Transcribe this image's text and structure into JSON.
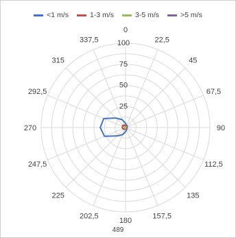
{
  "chart_data": {
    "type": "radar",
    "series": [
      {
        "name": "<1 m/s",
        "color": "#4472c4",
        "values": [
          5,
          3,
          3,
          2,
          2,
          2,
          2,
          3,
          5,
          9,
          14,
          27,
          30,
          28,
          16,
          10
        ]
      },
      {
        "name": "1-3 m/s",
        "color": "#c0504d",
        "values": [
          3,
          2,
          2,
          1,
          1,
          1,
          1,
          1,
          2,
          2,
          3,
          3,
          4,
          4,
          3,
          3
        ]
      },
      {
        "name": "3-5 m/s",
        "color": "#9bbb59",
        "values": [
          1,
          1,
          1,
          0,
          0,
          0,
          0,
          0,
          1,
          1,
          1,
          1,
          1,
          1,
          1,
          1
        ]
      },
      {
        "name": ">5 m/s",
        "color": "#8064a2",
        "values": [
          0,
          0,
          0,
          0,
          0,
          0,
          0,
          0,
          0,
          0,
          0,
          0,
          0,
          0,
          0,
          0
        ]
      }
    ],
    "directions": [
      "0",
      "22,5",
      "45",
      "67,5",
      "90",
      "112,5",
      "135",
      "157,5",
      "180",
      "202,5",
      "225",
      "247,5",
      "270",
      "292,5",
      "315",
      "337,5"
    ],
    "radial_ticks": [
      "0",
      "25",
      "50",
      "75",
      "100"
    ],
    "rmax": 100,
    "legend_position": "top",
    "footer": "489"
  }
}
